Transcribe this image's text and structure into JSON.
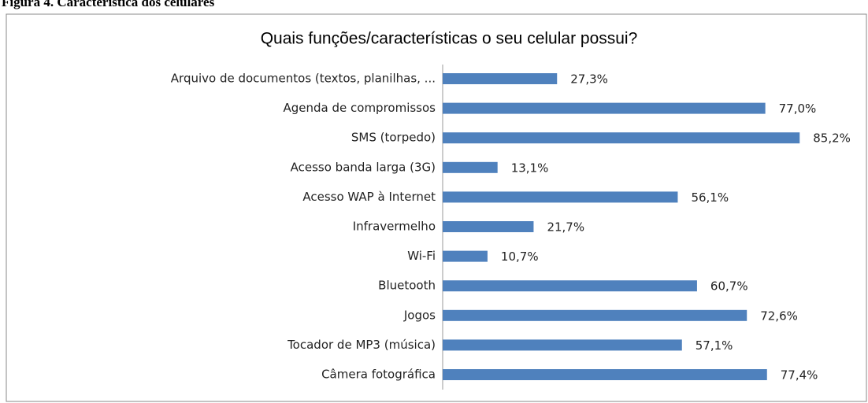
{
  "caption": "Figura 4. Característica dos celulares",
  "chart_data": {
    "type": "barh",
    "title": "Quais funções/características o seu celular possui?",
    "categories": [
      "Arquivo de documentos (textos, planilhas, ...",
      "Agenda de compromissos",
      "SMS (torpedo)",
      "Acesso banda larga (3G)",
      "Acesso WAP à Internet",
      "Infravermelho",
      "Wi-Fi",
      "Bluetooth",
      "Jogos",
      "Tocador de MP3 (música)",
      "Câmera fotográfica"
    ],
    "values": [
      27.3,
      77.0,
      85.2,
      13.1,
      56.1,
      21.7,
      10.7,
      60.7,
      72.6,
      57.1,
      77.4
    ],
    "value_labels": [
      "27,3%",
      "77,0%",
      "85,2%",
      "13,1%",
      "56,1%",
      "21,7%",
      "10,7%",
      "60,7%",
      "72,6%",
      "57,1%",
      "77,4%"
    ],
    "color": "#4f81bd"
  }
}
